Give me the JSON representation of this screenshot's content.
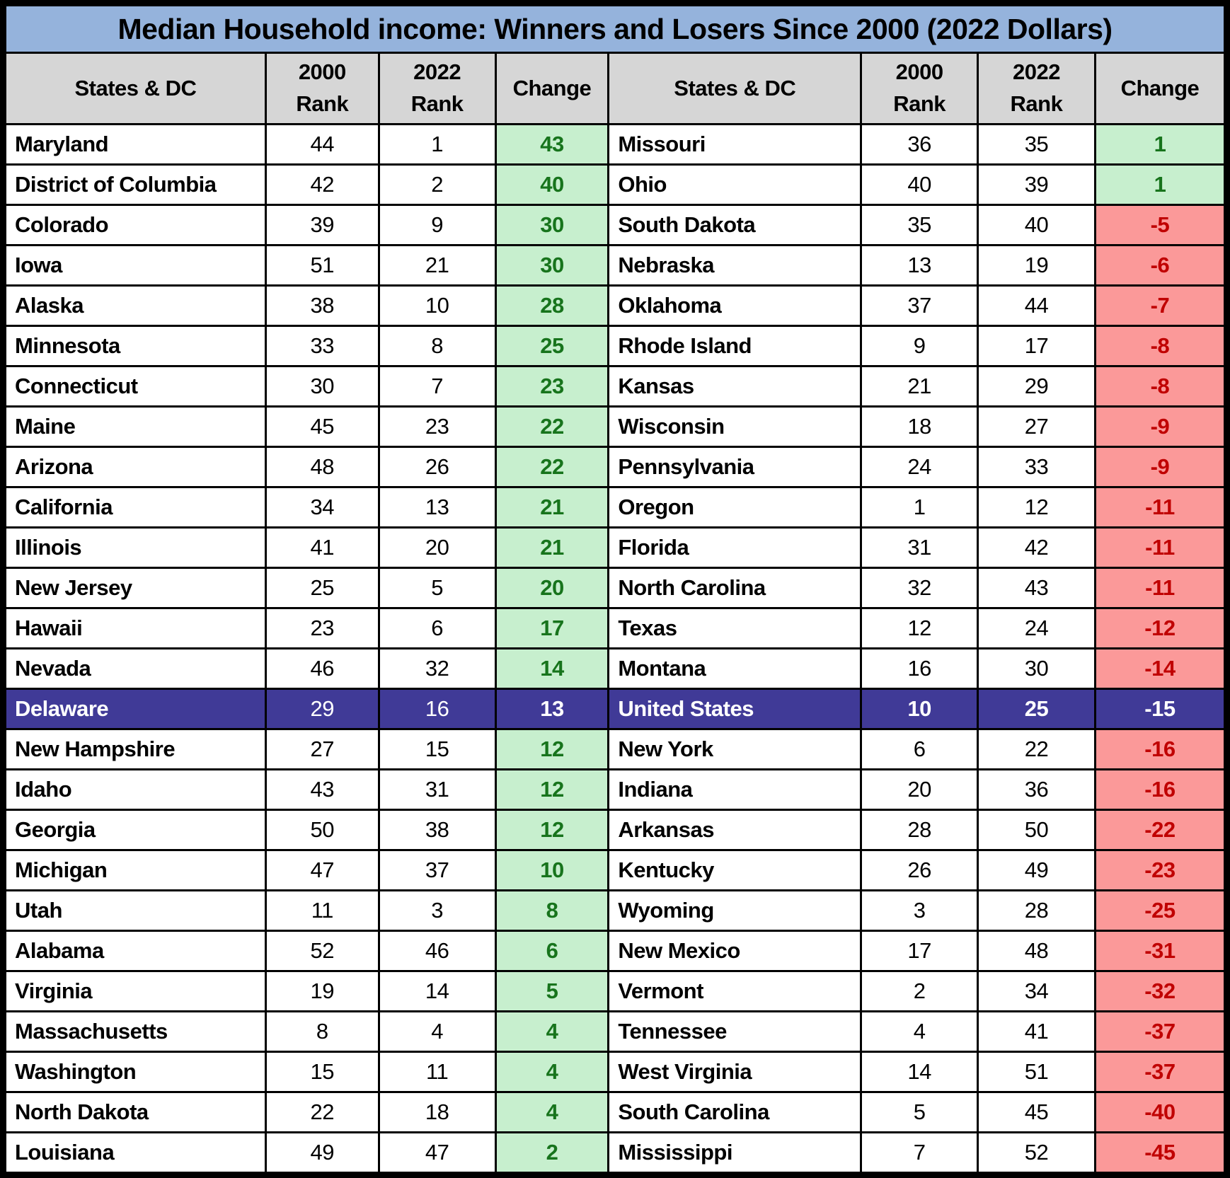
{
  "title": "Median Household income: Winners and Losers Since 2000 (2022 Dollars)",
  "headers": {
    "state": "States & DC",
    "y2000": "2000",
    "y2022": "2022",
    "rank": "Rank",
    "change": "Change"
  },
  "colors": {
    "title_bg": "#95B3DC",
    "header_bg": "#D6D6D6",
    "positive_bg": "#C7EFCE",
    "positive_text": "#17741C",
    "negative_bg": "#FB9999",
    "negative_text": "#C00000",
    "us_row_bg": "#403A97",
    "us_row_text": "#FFFFFF"
  },
  "chart_data": {
    "type": "table",
    "title": "Median Household income: Winners and Losers Since 2000 (2022 Dollars)",
    "columns": [
      "States & DC",
      "2000 Rank",
      "2022 Rank",
      "Change"
    ],
    "left_rows": [
      {
        "state": "Maryland",
        "rank_2000": 44,
        "rank_2022": 1,
        "change": 43,
        "status": "pos"
      },
      {
        "state": "District of Columbia",
        "rank_2000": 42,
        "rank_2022": 2,
        "change": 40,
        "status": "pos"
      },
      {
        "state": "Colorado",
        "rank_2000": 39,
        "rank_2022": 9,
        "change": 30,
        "status": "pos"
      },
      {
        "state": "Iowa",
        "rank_2000": 51,
        "rank_2022": 21,
        "change": 30,
        "status": "pos"
      },
      {
        "state": "Alaska",
        "rank_2000": 38,
        "rank_2022": 10,
        "change": 28,
        "status": "pos"
      },
      {
        "state": "Minnesota",
        "rank_2000": 33,
        "rank_2022": 8,
        "change": 25,
        "status": "pos"
      },
      {
        "state": "Connecticut",
        "rank_2000": 30,
        "rank_2022": 7,
        "change": 23,
        "status": "pos"
      },
      {
        "state": "Maine",
        "rank_2000": 45,
        "rank_2022": 23,
        "change": 22,
        "status": "pos"
      },
      {
        "state": "Arizona",
        "rank_2000": 48,
        "rank_2022": 26,
        "change": 22,
        "status": "pos"
      },
      {
        "state": "California",
        "rank_2000": 34,
        "rank_2022": 13,
        "change": 21,
        "status": "pos"
      },
      {
        "state": "Illinois",
        "rank_2000": 41,
        "rank_2022": 20,
        "change": 21,
        "status": "pos"
      },
      {
        "state": "New Jersey",
        "rank_2000": 25,
        "rank_2022": 5,
        "change": 20,
        "status": "pos"
      },
      {
        "state": "Hawaii",
        "rank_2000": 23,
        "rank_2022": 6,
        "change": 17,
        "status": "pos"
      },
      {
        "state": "Nevada",
        "rank_2000": 46,
        "rank_2022": 32,
        "change": 14,
        "status": "pos"
      },
      {
        "state": "Delaware",
        "rank_2000": 29,
        "rank_2022": 16,
        "change": 13,
        "status": "pos"
      },
      {
        "state": "New Hampshire",
        "rank_2000": 27,
        "rank_2022": 15,
        "change": 12,
        "status": "pos"
      },
      {
        "state": "Idaho",
        "rank_2000": 43,
        "rank_2022": 31,
        "change": 12,
        "status": "pos"
      },
      {
        "state": "Georgia",
        "rank_2000": 50,
        "rank_2022": 38,
        "change": 12,
        "status": "pos"
      },
      {
        "state": "Michigan",
        "rank_2000": 47,
        "rank_2022": 37,
        "change": 10,
        "status": "pos"
      },
      {
        "state": "Utah",
        "rank_2000": 11,
        "rank_2022": 3,
        "change": 8,
        "status": "pos"
      },
      {
        "state": "Alabama",
        "rank_2000": 52,
        "rank_2022": 46,
        "change": 6,
        "status": "pos"
      },
      {
        "state": "Virginia",
        "rank_2000": 19,
        "rank_2022": 14,
        "change": 5,
        "status": "pos"
      },
      {
        "state": "Massachusetts",
        "rank_2000": 8,
        "rank_2022": 4,
        "change": 4,
        "status": "pos"
      },
      {
        "state": "Washington",
        "rank_2000": 15,
        "rank_2022": 11,
        "change": 4,
        "status": "pos"
      },
      {
        "state": "North Dakota",
        "rank_2000": 22,
        "rank_2022": 18,
        "change": 4,
        "status": "pos"
      },
      {
        "state": "Louisiana",
        "rank_2000": 49,
        "rank_2022": 47,
        "change": 2,
        "status": "pos"
      }
    ],
    "right_rows": [
      {
        "state": "Missouri",
        "rank_2000": 36,
        "rank_2022": 35,
        "change": 1,
        "status": "pos"
      },
      {
        "state": "Ohio",
        "rank_2000": 40,
        "rank_2022": 39,
        "change": 1,
        "status": "pos"
      },
      {
        "state": "South Dakota",
        "rank_2000": 35,
        "rank_2022": 40,
        "change": -5,
        "status": "neg"
      },
      {
        "state": "Nebraska",
        "rank_2000": 13,
        "rank_2022": 19,
        "change": -6,
        "status": "neg"
      },
      {
        "state": "Oklahoma",
        "rank_2000": 37,
        "rank_2022": 44,
        "change": -7,
        "status": "neg"
      },
      {
        "state": "Rhode Island",
        "rank_2000": 9,
        "rank_2022": 17,
        "change": -8,
        "status": "neg"
      },
      {
        "state": "Kansas",
        "rank_2000": 21,
        "rank_2022": 29,
        "change": -8,
        "status": "neg"
      },
      {
        "state": "Wisconsin",
        "rank_2000": 18,
        "rank_2022": 27,
        "change": -9,
        "status": "neg"
      },
      {
        "state": "Pennsylvania",
        "rank_2000": 24,
        "rank_2022": 33,
        "change": -9,
        "status": "neg"
      },
      {
        "state": "Oregon",
        "rank_2000": 1,
        "rank_2022": 12,
        "change": -11,
        "status": "neg"
      },
      {
        "state": "Florida",
        "rank_2000": 31,
        "rank_2022": 42,
        "change": -11,
        "status": "neg"
      },
      {
        "state": "North Carolina",
        "rank_2000": 32,
        "rank_2022": 43,
        "change": -11,
        "status": "neg"
      },
      {
        "state": "Texas",
        "rank_2000": 12,
        "rank_2022": 24,
        "change": -12,
        "status": "neg"
      },
      {
        "state": "Montana",
        "rank_2000": 16,
        "rank_2022": 30,
        "change": -14,
        "status": "neg"
      },
      {
        "state": "United States",
        "rank_2000": 10,
        "rank_2022": 25,
        "change": -15,
        "status": "us"
      },
      {
        "state": "New York",
        "rank_2000": 6,
        "rank_2022": 22,
        "change": -16,
        "status": "neg"
      },
      {
        "state": "Indiana",
        "rank_2000": 20,
        "rank_2022": 36,
        "change": -16,
        "status": "neg"
      },
      {
        "state": "Arkansas",
        "rank_2000": 28,
        "rank_2022": 50,
        "change": -22,
        "status": "neg"
      },
      {
        "state": "Kentucky",
        "rank_2000": 26,
        "rank_2022": 49,
        "change": -23,
        "status": "neg"
      },
      {
        "state": "Wyoming",
        "rank_2000": 3,
        "rank_2022": 28,
        "change": -25,
        "status": "neg"
      },
      {
        "state": "New Mexico",
        "rank_2000": 17,
        "rank_2022": 48,
        "change": -31,
        "status": "neg"
      },
      {
        "state": "Vermont",
        "rank_2000": 2,
        "rank_2022": 34,
        "change": -32,
        "status": "neg"
      },
      {
        "state": "Tennessee",
        "rank_2000": 4,
        "rank_2022": 41,
        "change": -37,
        "status": "neg"
      },
      {
        "state": "West Virginia",
        "rank_2000": 14,
        "rank_2022": 51,
        "change": -37,
        "status": "neg"
      },
      {
        "state": "South Carolina",
        "rank_2000": 5,
        "rank_2022": 45,
        "change": -40,
        "status": "neg"
      },
      {
        "state": "Mississippi",
        "rank_2000": 7,
        "rank_2022": 52,
        "change": -45,
        "status": "neg"
      }
    ]
  }
}
